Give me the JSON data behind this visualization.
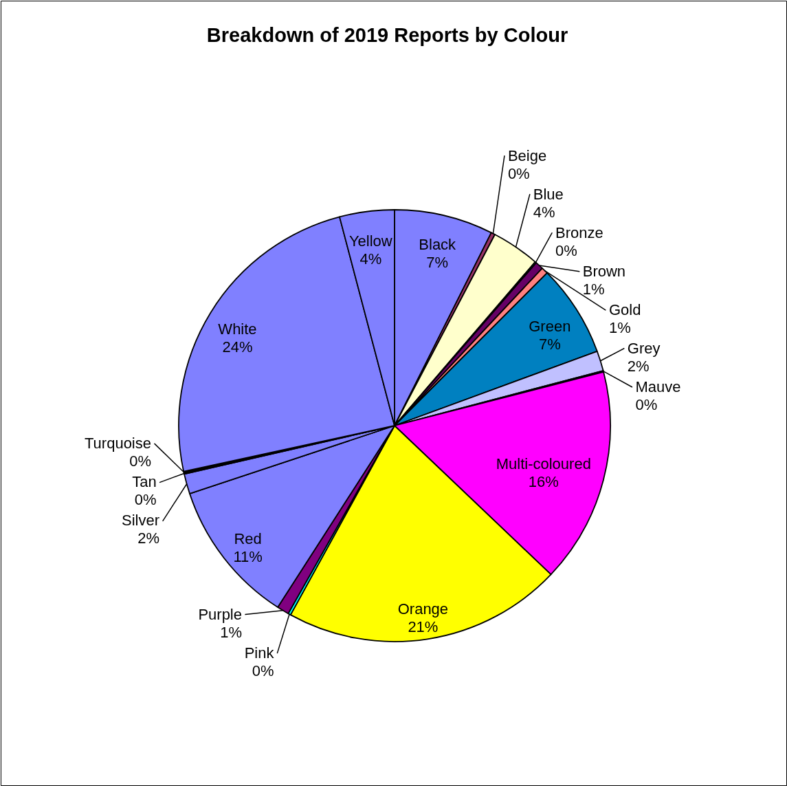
{
  "chart_data": {
    "type": "pie",
    "title": "Breakdown of 2019 Reports by Colour",
    "categories": [
      "Black",
      "Beige",
      "Blue",
      "Bronze",
      "Brown",
      "Gold",
      "Green",
      "Grey",
      "Mauve",
      "Multi-coloured",
      "Orange",
      "Pink",
      "Purple",
      "Red",
      "Silver",
      "Tan",
      "Turquoise",
      "White",
      "Yellow"
    ],
    "values": [
      7.4,
      0.3,
      3.6,
      0.1,
      0.6,
      0.5,
      6.9,
      1.5,
      0.1,
      16.1,
      20.9,
      0.2,
      0.9,
      10.8,
      1.5,
      0.1,
      0.1,
      24.3,
      4.1
    ],
    "value_labels": [
      "7%",
      "0%",
      "4%",
      "0%",
      "1%",
      "1%",
      "7%",
      "2%",
      "0%",
      "16%",
      "21%",
      "0%",
      "1%",
      "11%",
      "2%",
      "0%",
      "0%",
      "24%",
      "4%"
    ],
    "colors": [
      "#8080ff",
      "#993366",
      "#ffffcc",
      "#ccffff",
      "#660066",
      "#ff8080",
      "#0080c0",
      "#c0c0ff",
      "#000080",
      "#ff00ff",
      "#ffff00",
      "#00ffff",
      "#800080",
      "#8080ff",
      "#8080ff",
      "#8080ff",
      "#8080ff",
      "#8080ff",
      "#8080ff"
    ]
  }
}
